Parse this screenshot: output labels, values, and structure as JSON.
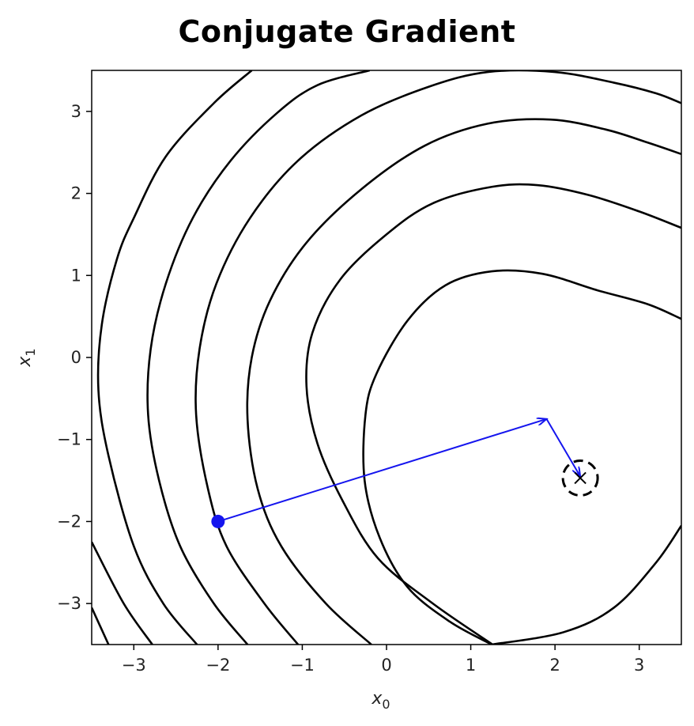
{
  "chart_data": {
    "type": "line",
    "title": "Conjugate Gradient",
    "xlabel": "x",
    "xlabel_sub": "0",
    "ylabel": "x",
    "ylabel_sub": "1",
    "xlim": [
      -3.5,
      3.5
    ],
    "ylim": [
      -3.5,
      3.5
    ],
    "xticks": [
      -3,
      -2,
      -1,
      0,
      1,
      2,
      3
    ],
    "yticks": [
      -3,
      -2,
      -1,
      0,
      1,
      2,
      3
    ],
    "xtick_labels": [
      "−3",
      "−2",
      "−1",
      "0",
      "1",
      "2",
      "3"
    ],
    "ytick_labels": [
      "−3",
      "−2",
      "−1",
      "0",
      "1",
      "2",
      "3"
    ],
    "grid": false,
    "contour_color": "#000000",
    "path_color": "#1515ee",
    "contours": [
      {
        "name": "level-1",
        "points": [
          [
            -3.3,
            -3.5
          ],
          [
            -3.5,
            -3.05
          ]
        ]
      },
      {
        "name": "level-2",
        "points": [
          [
            -3.5,
            -2.25
          ],
          [
            -3.12,
            -3.0
          ],
          [
            -2.78,
            -3.5
          ]
        ]
      },
      {
        "name": "level-3",
        "points": [
          [
            -2.25,
            -3.5
          ],
          [
            -2.65,
            -3.0
          ],
          [
            -3.0,
            -2.3
          ],
          [
            -3.3,
            -1.2
          ],
          [
            -3.42,
            -0.4
          ],
          [
            -3.38,
            0.4
          ],
          [
            -3.2,
            1.2
          ],
          [
            -3.0,
            1.7
          ],
          [
            -2.62,
            2.45
          ],
          [
            -2.05,
            3.1
          ],
          [
            -1.6,
            3.5
          ]
        ]
      },
      {
        "name": "level-4",
        "points": [
          [
            -1.65,
            -3.5
          ],
          [
            -2.05,
            -3.0
          ],
          [
            -2.45,
            -2.3
          ],
          [
            -2.7,
            -1.5
          ],
          [
            -2.83,
            -0.7
          ],
          [
            -2.8,
            0.1
          ],
          [
            -2.62,
            0.9
          ],
          [
            -2.3,
            1.7
          ],
          [
            -1.85,
            2.4
          ],
          [
            -1.3,
            2.98
          ],
          [
            -0.82,
            3.32
          ],
          [
            -0.2,
            3.5
          ]
        ]
      },
      {
        "name": "level-5",
        "points": [
          [
            -1.05,
            -3.5
          ],
          [
            -1.45,
            -3.0
          ],
          [
            -1.9,
            -2.3
          ],
          [
            -2.12,
            -1.6
          ],
          [
            -2.26,
            -0.7
          ],
          [
            -2.22,
            0.1
          ],
          [
            -2.02,
            0.9
          ],
          [
            -1.62,
            1.7
          ],
          [
            -1.05,
            2.4
          ],
          [
            -0.3,
            2.95
          ],
          [
            0.5,
            3.3
          ],
          [
            1.2,
            3.48
          ],
          [
            2.0,
            3.48
          ],
          [
            2.7,
            3.35
          ],
          [
            3.2,
            3.22
          ],
          [
            3.5,
            3.1
          ]
        ]
      },
      {
        "name": "level-6",
        "points": [
          [
            -0.18,
            -3.5
          ],
          [
            -0.72,
            -3.0
          ],
          [
            -1.25,
            -2.3
          ],
          [
            -1.53,
            -1.6
          ],
          [
            -1.65,
            -0.75
          ],
          [
            -1.6,
            0.0
          ],
          [
            -1.38,
            0.7
          ],
          [
            -0.95,
            1.4
          ],
          [
            -0.3,
            2.05
          ],
          [
            0.45,
            2.58
          ],
          [
            1.2,
            2.85
          ],
          [
            1.95,
            2.9
          ],
          [
            2.6,
            2.78
          ],
          [
            3.1,
            2.62
          ],
          [
            3.5,
            2.48
          ]
        ]
      },
      {
        "name": "level-7",
        "points": [
          [
            1.26,
            -3.5
          ],
          [
            0.55,
            -3.0
          ],
          [
            -0.1,
            -2.45
          ],
          [
            -0.52,
            -1.75
          ],
          [
            -0.82,
            -1.05
          ],
          [
            -0.95,
            -0.35
          ],
          [
            -0.88,
            0.3
          ],
          [
            -0.55,
            0.95
          ],
          [
            0.0,
            1.5
          ],
          [
            0.55,
            1.88
          ],
          [
            1.25,
            2.08
          ],
          [
            1.8,
            2.1
          ],
          [
            2.4,
            1.98
          ],
          [
            3.0,
            1.78
          ],
          [
            3.5,
            1.58
          ]
        ]
      },
      {
        "name": "level-8",
        "points": [
          [
            3.5,
            -2.05
          ],
          [
            3.2,
            -2.5
          ],
          [
            2.7,
            -3.05
          ],
          [
            2.1,
            -3.35
          ],
          [
            1.25,
            -3.5
          ]
        ]
      },
      {
        "name": "level-8b",
        "points": [
          [
            1.25,
            -3.5
          ],
          [
            0.75,
            -3.22
          ],
          [
            0.25,
            -2.8
          ],
          [
            -0.08,
            -2.2
          ],
          [
            -0.26,
            -1.5
          ],
          [
            -0.25,
            -0.7
          ],
          [
            -0.12,
            -0.2
          ],
          [
            0.25,
            0.45
          ],
          [
            0.7,
            0.88
          ],
          [
            1.25,
            1.05
          ],
          [
            1.85,
            1.02
          ],
          [
            2.5,
            0.82
          ],
          [
            3.1,
            0.65
          ],
          [
            3.5,
            0.47
          ]
        ]
      }
    ],
    "path": [
      [
        -2.0,
        -2.0
      ],
      [
        1.9,
        -0.75
      ],
      [
        2.3,
        -1.45
      ]
    ],
    "start_point": [
      -2.0,
      -2.0
    ],
    "minimum": [
      2.3,
      -1.47
    ]
  }
}
